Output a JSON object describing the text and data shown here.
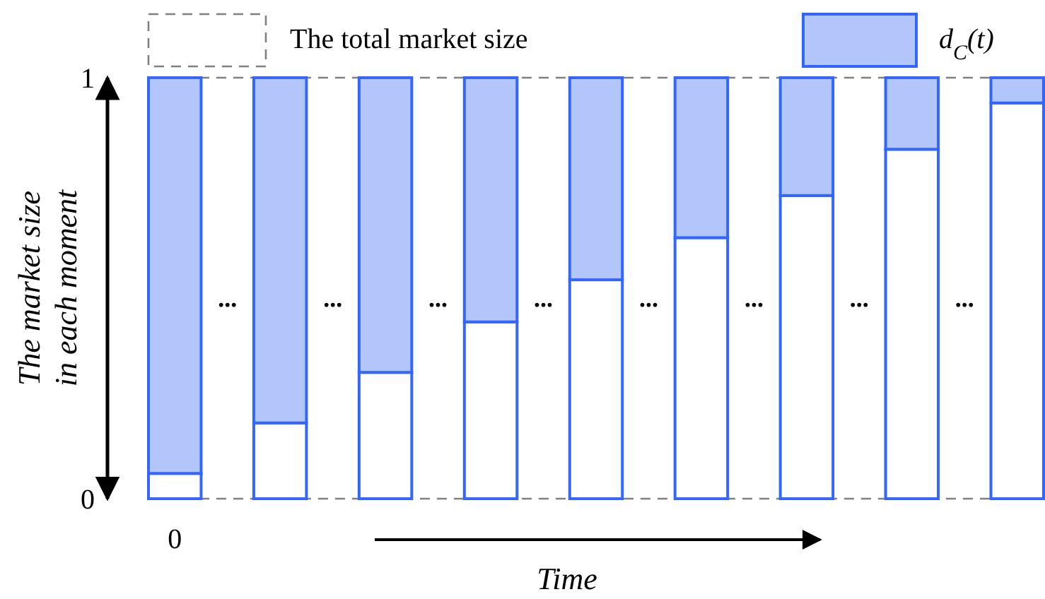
{
  "chart_data": {
    "type": "bar",
    "stacked": true,
    "categories": [
      "0",
      null,
      null,
      null,
      null,
      null,
      null,
      null,
      null
    ],
    "series": [
      {
        "color": "#ffffff",
        "values": [
          0.06,
          0.18,
          0.3,
          0.42,
          0.52,
          0.62,
          0.72,
          0.83,
          0.94
        ]
      },
      {
        "name": "d$_{C}$(t)",
        "color": "#b3c6fb",
        "values": [
          0.94,
          0.82,
          0.7,
          0.58,
          0.48,
          0.38,
          0.28,
          0.17,
          0.06
        ]
      }
    ],
    "ref_lines": [
      {
        "axis": "y",
        "value": 1,
        "label": "The total market size",
        "color": "#808080",
        "line_style": "dashed"
      },
      {
        "axis": "y",
        "value": 0,
        "color": "#808080",
        "line_style": "dashed"
      }
    ],
    "ylim": [
      0,
      1
    ],
    "yticks": [
      0,
      1
    ],
    "ylabel": "The market size in each moment",
    "xlabel": "Time",
    "annotations": [
      "...",
      "...",
      "...",
      "...",
      "...",
      "...",
      "...",
      "..."
    ],
    "legend": "top",
    "grid": false
  }
}
